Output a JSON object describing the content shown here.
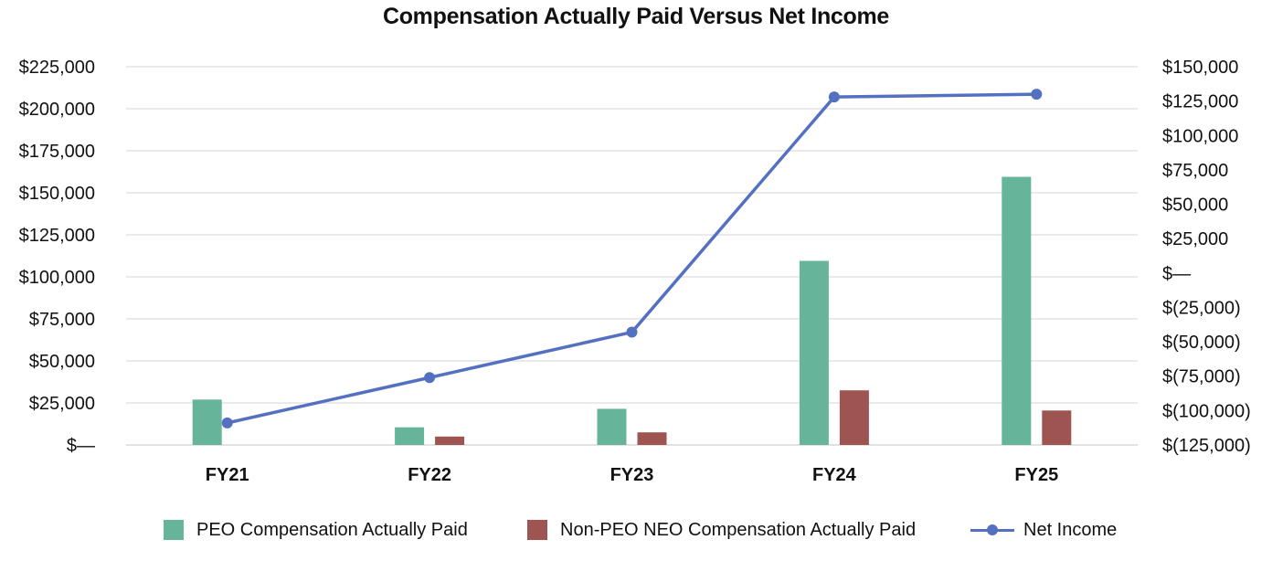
{
  "chart_data": {
    "type": "bar",
    "title": "Compensation Actually Paid Versus Net Income",
    "categories": [
      "FY21",
      "FY22",
      "FY23",
      "FY24",
      "FY25"
    ],
    "series": [
      {
        "name": "PEO Compensation Actually Paid",
        "type": "bar",
        "axis": "left",
        "color": "#66b49a",
        "values": [
          27000,
          10500,
          21500,
          109500,
          159500
        ]
      },
      {
        "name": "Non-PEO NEO Compensation Actually Paid",
        "type": "bar",
        "axis": "left",
        "color": "#9e5552",
        "values": [
          0,
          5000,
          7500,
          32500,
          20500
        ]
      },
      {
        "name": "Net Income",
        "type": "line",
        "axis": "right",
        "color": "#5470c1",
        "values": [
          -109000,
          -76000,
          -43000,
          128000,
          130000
        ]
      }
    ],
    "y_left": {
      "ylim": [
        0,
        225000
      ],
      "ticks": [
        0,
        25000,
        50000,
        75000,
        100000,
        125000,
        150000,
        175000,
        200000,
        225000
      ],
      "tick_labels": [
        "$—",
        "$25,000",
        "$50,000",
        "$75,000",
        "$100,000",
        "$125,000",
        "$150,000",
        "$175,000",
        "$200,000",
        "$225,000"
      ]
    },
    "y_right": {
      "ylim": [
        -125000,
        150000
      ],
      "ticks": [
        -125000,
        -100000,
        -75000,
        -50000,
        -25000,
        0,
        25000,
        50000,
        75000,
        100000,
        125000,
        150000
      ],
      "tick_labels": [
        "$(125,000)",
        "$(100,000)",
        "$(75,000)",
        "$(50,000)",
        "$(25,000)",
        "$—",
        "$25,000",
        "$50,000",
        "$75,000",
        "$100,000",
        "$125,000",
        "$150,000"
      ]
    },
    "grid": true,
    "legend": "bottom"
  }
}
